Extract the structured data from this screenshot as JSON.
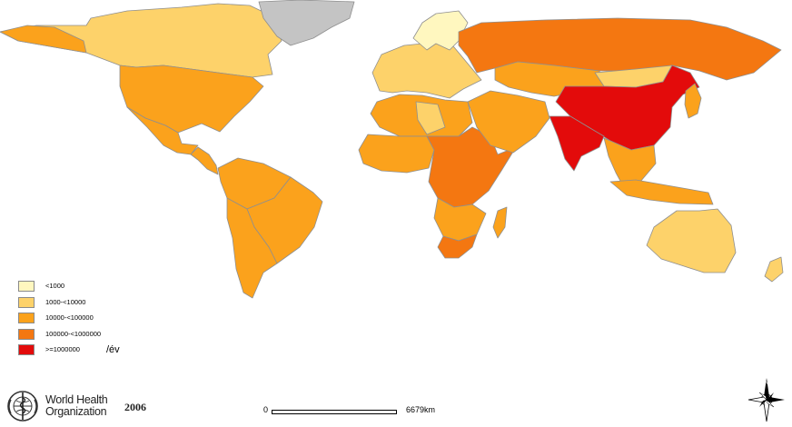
{
  "map": {
    "regions": [
      {
        "name": "Canada",
        "class": "1000-<10000"
      },
      {
        "name": "Alaska",
        "class": "10000-<100000"
      },
      {
        "name": "Greenland",
        "class": "no data"
      },
      {
        "name": "United States",
        "class": "10000-<100000"
      },
      {
        "name": "Mexico",
        "class": "10000-<100000"
      },
      {
        "name": "Central America",
        "class": "10000-<100000"
      },
      {
        "name": "South America north",
        "class": "10000-<100000"
      },
      {
        "name": "Brazil",
        "class": "10000-<100000"
      },
      {
        "name": "Argentina",
        "class": "10000-<100000"
      },
      {
        "name": "Europe",
        "class": "1000-<10000"
      },
      {
        "name": "Scandinavia",
        "class": "<1000"
      },
      {
        "name": "Russia",
        "class": "100000-<1000000"
      },
      {
        "name": "North Africa",
        "class": "10000-<100000"
      },
      {
        "name": "Sahara",
        "class": "1000-<10000"
      },
      {
        "name": "West Africa",
        "class": "10000-<100000"
      },
      {
        "name": "Central and East Africa",
        "class": "100000-<1000000"
      },
      {
        "name": "Southern Africa",
        "class": "10000-<100000"
      },
      {
        "name": "South Africa",
        "class": "100000-<1000000"
      },
      {
        "name": "Madagascar",
        "class": "10000-<100000"
      },
      {
        "name": "Middle East",
        "class": "10000-<100000"
      },
      {
        "name": "Central Asia",
        "class": "10000-<100000"
      },
      {
        "name": "Mongolia",
        "class": "1000-<10000"
      },
      {
        "name": "China",
        "class": ">=1000000"
      },
      {
        "name": "India",
        "class": ">=1000000"
      },
      {
        "name": "Southeast Asia",
        "class": "10000-<100000"
      },
      {
        "name": "Indonesia",
        "class": "10000-<100000"
      },
      {
        "name": "Japan",
        "class": "10000-<100000"
      },
      {
        "name": "Australia",
        "class": "1000-<10000"
      },
      {
        "name": "New Zealand",
        "class": "1000-<10000"
      }
    ]
  },
  "legend": {
    "items": [
      {
        "label": "<1000",
        "color": "#fff7bf"
      },
      {
        "label": "1000-<10000",
        "color": "#fdd26a"
      },
      {
        "label": "10000-<100000",
        "color": "#fba21c"
      },
      {
        "label": "100000-<1000000",
        "color": "#f47711"
      },
      {
        "label": ">=1000000",
        "color": "#e30b0b"
      }
    ],
    "unit": "/év"
  },
  "colors": {
    "no_data": "#c4c4c4",
    "border": "#8f8f8f",
    "water": "#ffffff"
  },
  "who": {
    "line1": "World Health",
    "line2": "Organization",
    "emblem_icon": "who-emblem-icon"
  },
  "year": "2006",
  "scale": {
    "zero": "0",
    "end": "6679km"
  },
  "compass_icon": "north-arrow-compass-icon"
}
